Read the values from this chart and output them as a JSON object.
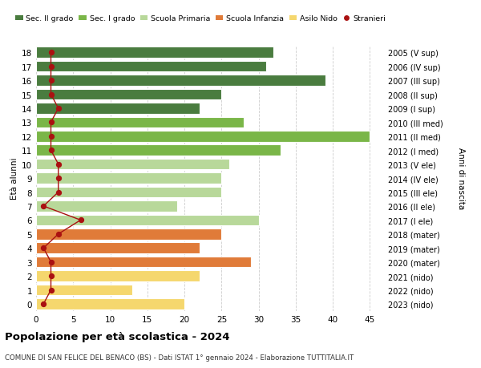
{
  "ages": [
    0,
    1,
    2,
    3,
    4,
    5,
    6,
    7,
    8,
    9,
    10,
    11,
    12,
    13,
    14,
    15,
    16,
    17,
    18
  ],
  "years": [
    "2023 (nido)",
    "2022 (nido)",
    "2021 (nido)",
    "2020 (mater)",
    "2019 (mater)",
    "2018 (mater)",
    "2017 (I ele)",
    "2016 (II ele)",
    "2015 (III ele)",
    "2014 (IV ele)",
    "2013 (V ele)",
    "2012 (I med)",
    "2011 (II med)",
    "2010 (III med)",
    "2009 (I sup)",
    "2008 (II sup)",
    "2007 (III sup)",
    "2006 (IV sup)",
    "2005 (V sup)"
  ],
  "bar_values": [
    20,
    13,
    22,
    29,
    22,
    25,
    30,
    19,
    25,
    25,
    26,
    33,
    45,
    28,
    22,
    25,
    39,
    31,
    32
  ],
  "bar_colors": [
    "#f5d76e",
    "#f5d76e",
    "#f5d76e",
    "#e07b39",
    "#e07b39",
    "#e07b39",
    "#b8d89a",
    "#b8d89a",
    "#b8d89a",
    "#b8d89a",
    "#b8d89a",
    "#7ab648",
    "#7ab648",
    "#7ab648",
    "#4a7c3f",
    "#4a7c3f",
    "#4a7c3f",
    "#4a7c3f",
    "#4a7c3f"
  ],
  "stranieri": [
    1,
    2,
    2,
    2,
    1,
    3,
    6,
    1,
    3,
    3,
    3,
    2,
    2,
    2,
    3,
    2,
    2,
    2,
    2
  ],
  "stranieri_color": "#aa1111",
  "legend_labels": [
    "Sec. II grado",
    "Sec. I grado",
    "Scuola Primaria",
    "Scuola Infanzia",
    "Asilo Nido",
    "Stranieri"
  ],
  "legend_colors": [
    "#4a7c3f",
    "#7ab648",
    "#b8d89a",
    "#e07b39",
    "#f5d76e",
    "#aa1111"
  ],
  "title": "Popolazione per età scolastica - 2024",
  "subtitle": "COMUNE DI SAN FELICE DEL BENACO (BS) - Dati ISTAT 1° gennaio 2024 - Elaborazione TUTTITALIA.IT",
  "ylabel_left": "Età alunni",
  "ylabel_right": "Anni di nascita",
  "xlim": [
    0,
    47
  ],
  "xticks": [
    0,
    5,
    10,
    15,
    20,
    25,
    30,
    35,
    40,
    45
  ],
  "background_color": "#ffffff",
  "grid_color": "#cccccc",
  "bar_height": 0.78
}
